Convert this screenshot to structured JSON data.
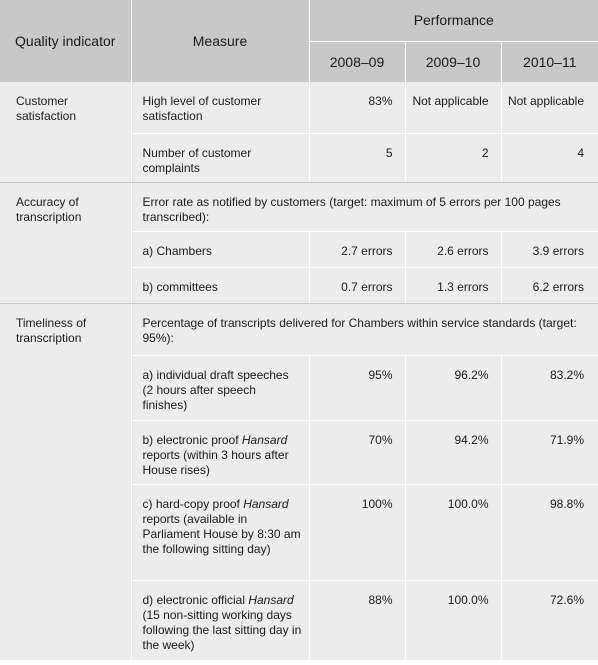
{
  "header": {
    "quality_indicator": "Quality indicator",
    "measure": "Measure",
    "performance": "Performance",
    "years": [
      "2008–09",
      "2009–10",
      "2010–11"
    ]
  },
  "sections": [
    {
      "indicator": "Customer satisfaction",
      "rows": [
        {
          "measure": "High level of customer satisfaction",
          "values": [
            "83%",
            "Not applicable",
            "Not applicable"
          ]
        },
        {
          "measure": "Number of customer complaints",
          "values": [
            "5",
            "2",
            "4"
          ]
        }
      ]
    },
    {
      "indicator": "Accuracy of transcription",
      "note": "Error rate as notified by customers (target: maximum of 5 errors per 100 pages transcribed):",
      "rows": [
        {
          "measure": "a) Chambers",
          "values": [
            "2.7 errors",
            "2.6 errors",
            "3.9 errors"
          ]
        },
        {
          "measure": "b) committees",
          "values": [
            "0.7 errors",
            "1.3 errors",
            "6.2 errors"
          ]
        }
      ]
    },
    {
      "indicator": "Timeliness of transcription",
      "note": "Percentage of transcripts delivered for Chambers within service standards (target: 95%):",
      "rows": [
        {
          "measure": "a) individual draft speeches (2 hours after speech finishes)",
          "values": [
            "95%",
            "96.2%",
            "83.2%"
          ]
        },
        {
          "measure_parts": [
            "b) electronic proof ",
            "Hansard",
            " reports (within 3 hours after House rises)"
          ],
          "values": [
            "70%",
            "94.2%",
            "71.9%"
          ]
        },
        {
          "measure_parts": [
            "c) hard-copy proof ",
            "Hansard",
            " reports (available in Parliament House by 8:30 am the following sitting day)"
          ],
          "values": [
            "100%",
            "100.0%",
            "98.8%"
          ]
        },
        {
          "measure_parts": [
            "d) electronic official ",
            "Hansard",
            " (15 non-sitting working days following the last sitting day in the week)"
          ],
          "values": [
            "88%",
            "100.0%",
            "72.6%"
          ]
        }
      ]
    }
  ]
}
